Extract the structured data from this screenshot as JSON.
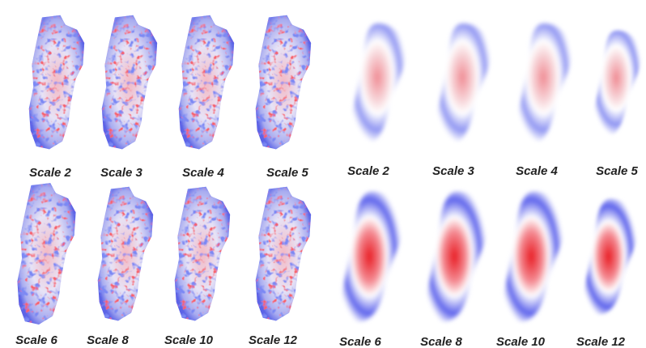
{
  "left_panel": {
    "labels": [
      "Scale 2",
      "Scale 3",
      "Scale 4",
      "Scale 5",
      "Scale 6",
      "Scale 8",
      "Scale 10",
      "Scale 12"
    ]
  },
  "right_panel": {
    "labels": [
      "Scale 2",
      "Scale 3",
      "Scale 4",
      "Scale 5",
      "Scale 6",
      "Scale 8",
      "Scale 10",
      "Scale 12"
    ]
  }
}
